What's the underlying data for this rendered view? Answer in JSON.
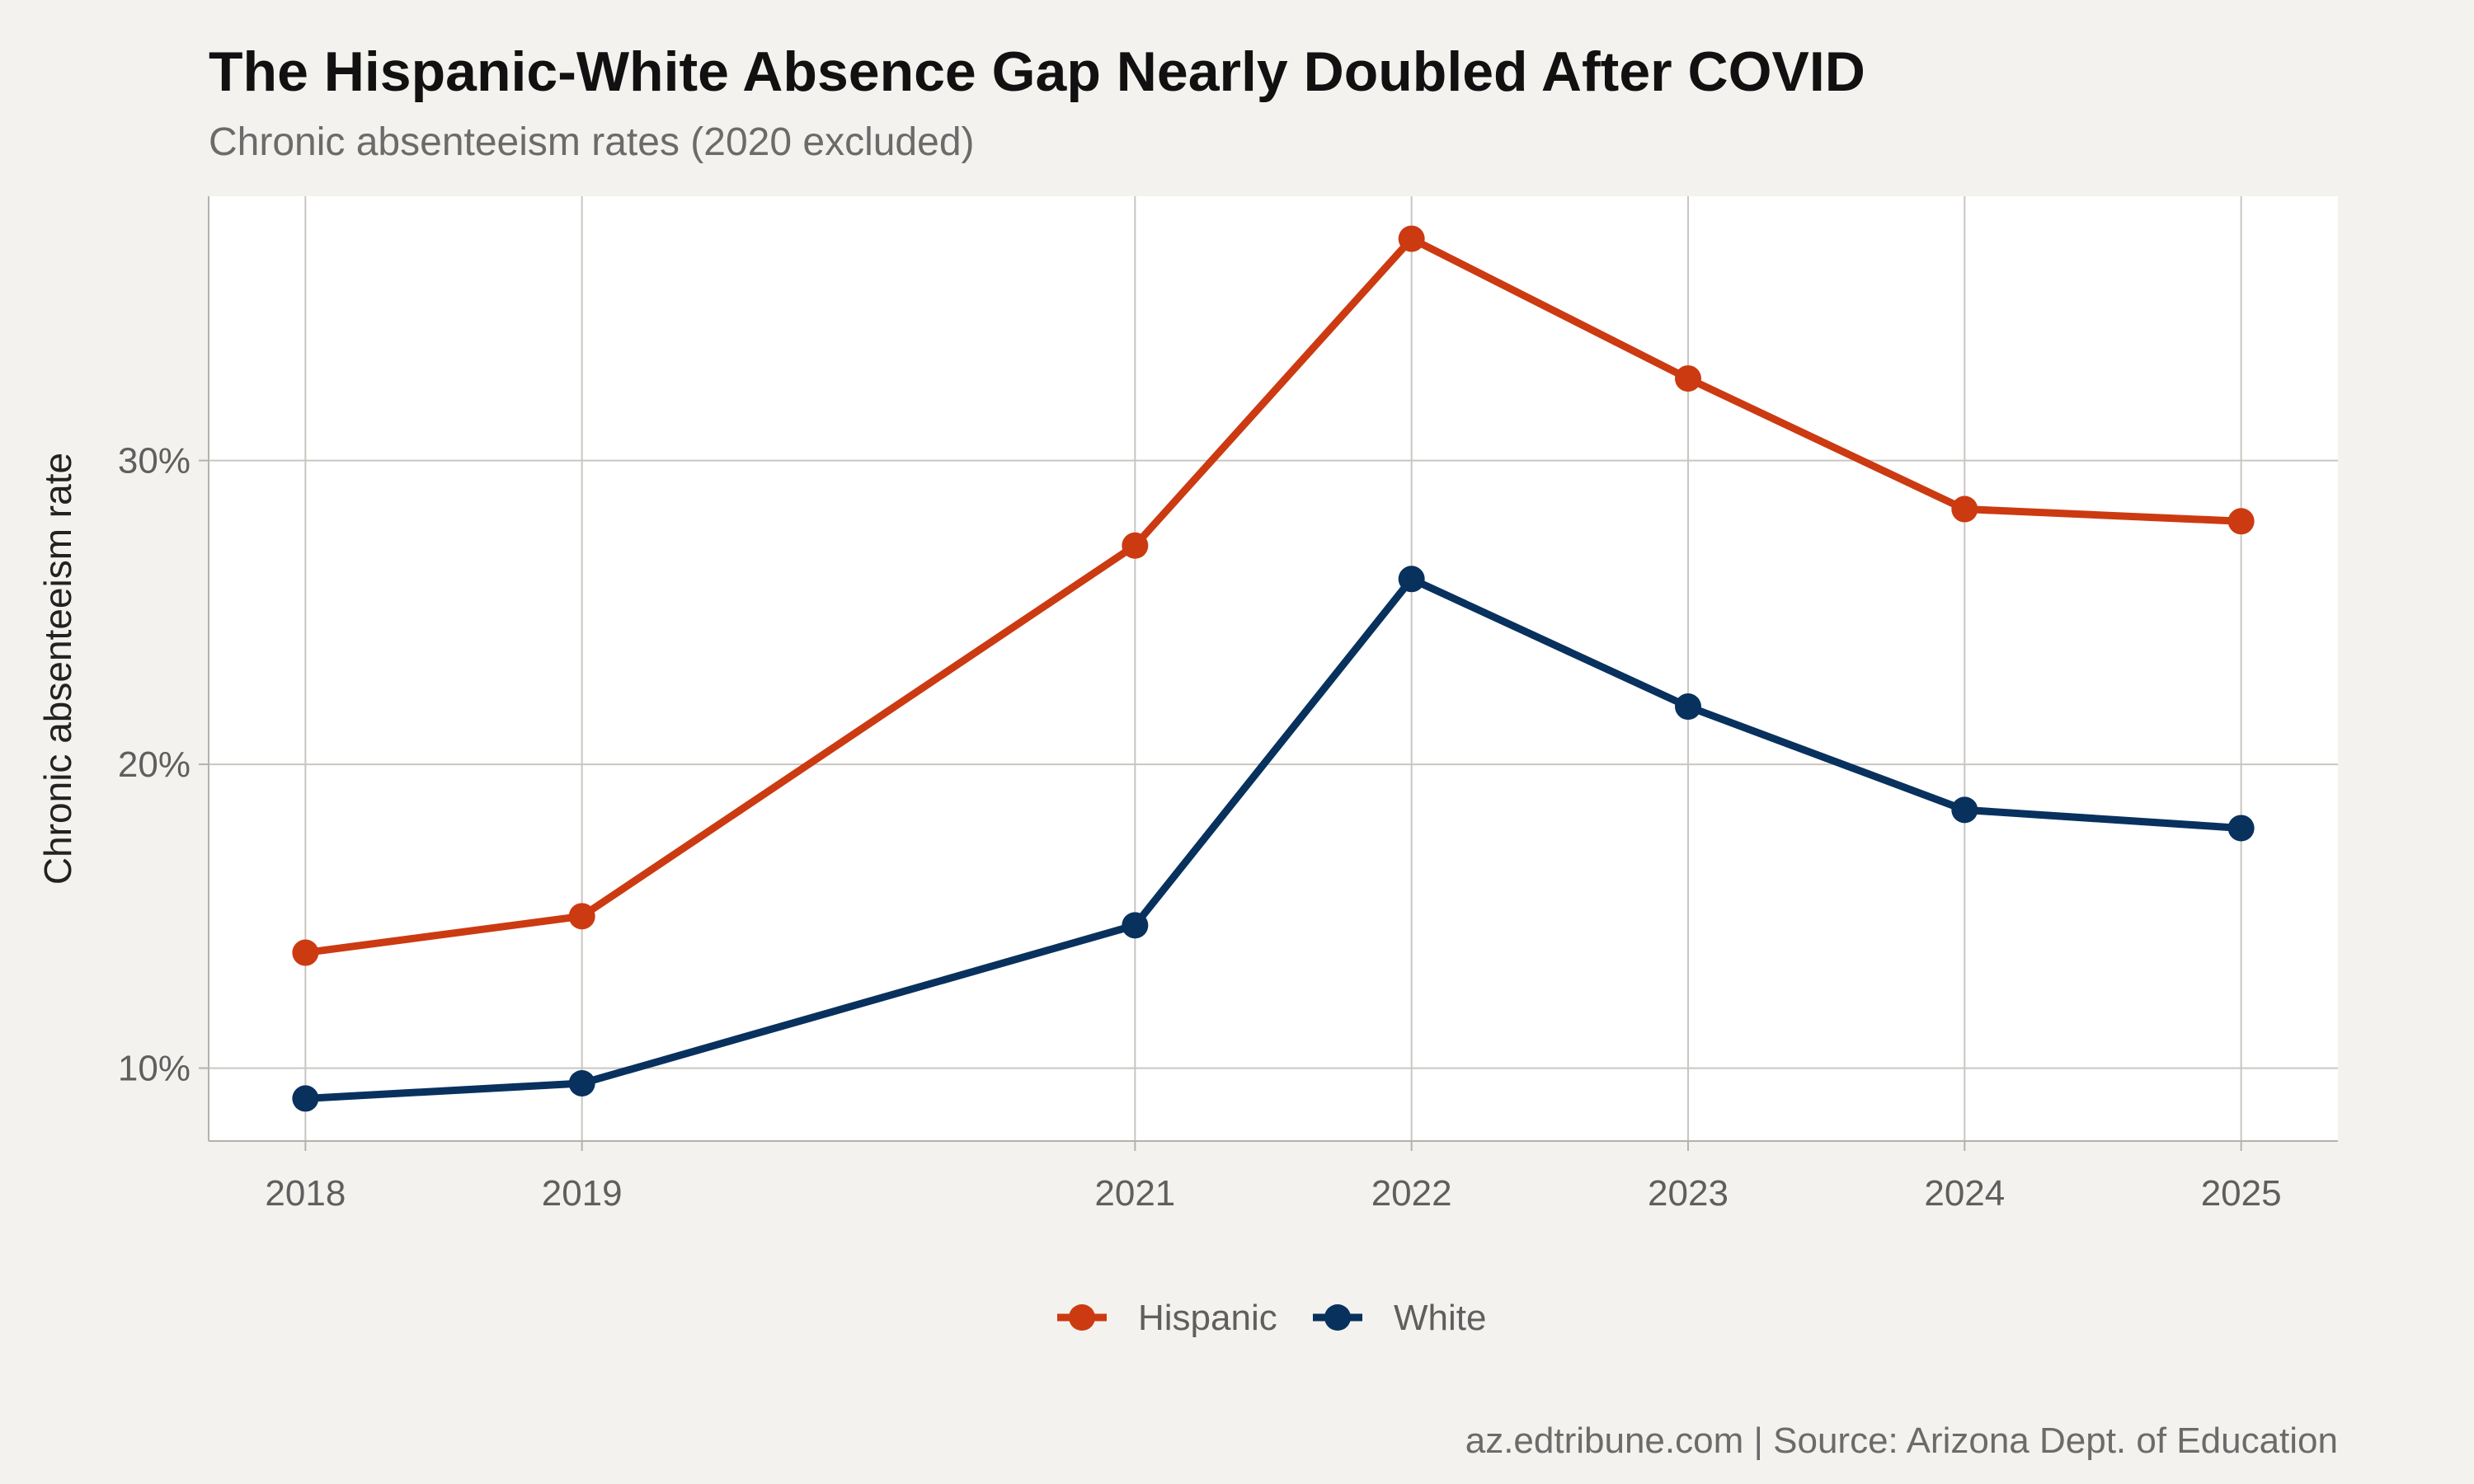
{
  "chart_data": {
    "type": "line",
    "title": "The Hispanic-White Absence Gap Nearly Doubled After COVID",
    "subtitle": "Chronic absenteeism rates (2020 excluded)",
    "xlabel": "",
    "ylabel": "Chronic absenteeism rate",
    "x": [
      2018,
      2019,
      2021,
      2022,
      2023,
      2024,
      2025
    ],
    "xlim": [
      2017.65,
      2025.35
    ],
    "ylim": [
      7.6,
      38.7
    ],
    "y_ticks": [
      10,
      20,
      30
    ],
    "y_tick_labels": [
      "10%",
      "20%",
      "30%"
    ],
    "grid": true,
    "legend_position": "bottom",
    "series": [
      {
        "name": "Hispanic",
        "color": "#cc3a12",
        "values": [
          13.8,
          15.0,
          27.2,
          37.3,
          32.7,
          28.4,
          28.0
        ]
      },
      {
        "name": "White",
        "color": "#08315e",
        "values": [
          9.0,
          9.5,
          14.7,
          26.1,
          21.9,
          18.5,
          17.9
        ]
      }
    ],
    "caption": "az.edtribune.com | Source: Arizona Dept. of Education"
  }
}
